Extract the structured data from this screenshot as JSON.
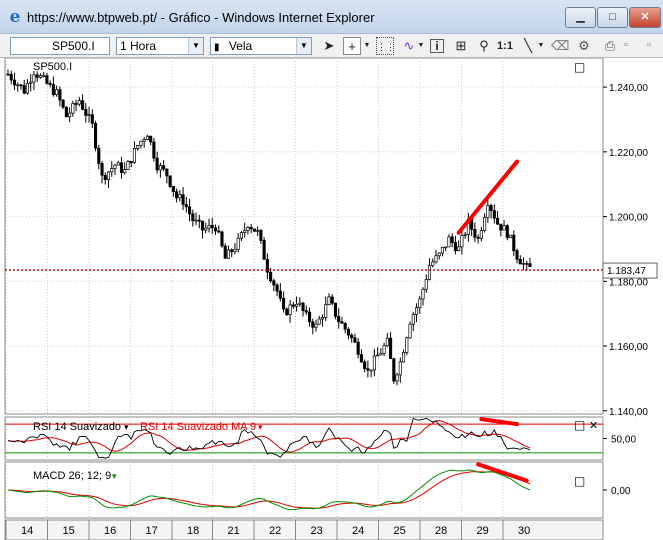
{
  "window": {
    "title": "https://www.btpweb.pt/ - Gráfico - Windows Internet Explorer",
    "min_label": "▁",
    "max_label": "□",
    "close_label": "✕"
  },
  "toolbar": {
    "symbol": "SP500.I",
    "interval": "1 Hora",
    "chart_type": "Vela",
    "one_to_one": "1:1"
  },
  "chart_data": [
    {
      "type": "candlestick",
      "title": "SP500.I",
      "x_labels": [
        "14",
        "15",
        "16",
        "17",
        "18",
        "21",
        "22",
        "23",
        "24",
        "25",
        "28",
        "29",
        "30"
      ],
      "y_ticks": [
        "1.240,00",
        "1.220,00",
        "1.200,00",
        "1.180,00",
        "1.160,00",
        "1.140,00"
      ],
      "ylim": [
        1139,
        1249
      ],
      "last_price": 1183.47,
      "last_price_label": "1.183,47",
      "close_path": [
        [
          0,
          1244
        ],
        [
          5,
          1239
        ],
        [
          8,
          1245
        ],
        [
          12,
          1241
        ],
        [
          15,
          1238
        ],
        [
          18,
          1231
        ],
        [
          22,
          1236
        ],
        [
          26,
          1228
        ],
        [
          29,
          1212
        ],
        [
          33,
          1216
        ],
        [
          36,
          1214
        ],
        [
          40,
          1222
        ],
        [
          43,
          1226
        ],
        [
          46,
          1216
        ],
        [
          49,
          1213
        ],
        [
          52,
          1206
        ],
        [
          54,
          1205
        ],
        [
          57,
          1199
        ],
        [
          60,
          1196
        ],
        [
          64,
          1197
        ],
        [
          67,
          1187
        ],
        [
          71,
          1192
        ],
        [
          74,
          1198
        ],
        [
          77,
          1195
        ],
        [
          80,
          1184
        ],
        [
          83,
          1177
        ],
        [
          85,
          1170
        ],
        [
          89,
          1174
        ],
        [
          92,
          1169
        ],
        [
          95,
          1166
        ],
        [
          99,
          1174
        ],
        [
          102,
          1168
        ],
        [
          105,
          1164
        ],
        [
          108,
          1159
        ],
        [
          111,
          1152
        ],
        [
          114,
          1157
        ],
        [
          117,
          1161
        ],
        [
          119,
          1150
        ],
        [
          121,
          1155
        ],
        [
          124,
          1168
        ],
        [
          127,
          1174
        ],
        [
          130,
          1185
        ],
        [
          133,
          1188
        ],
        [
          136,
          1193
        ],
        [
          139,
          1190
        ],
        [
          142,
          1198
        ],
        [
          145,
          1193
        ],
        [
          148,
          1205
        ],
        [
          151,
          1198
        ],
        [
          154,
          1195
        ],
        [
          157,
          1188
        ],
        [
          160,
          1184
        ]
      ],
      "annotation_line": {
        "from": [
          139,
          1195
        ],
        "to": [
          157,
          1217
        ]
      }
    },
    {
      "type": "line",
      "title": "RSI 14 Suavizado",
      "series": [
        {
          "name": "RSI 14 Suavizado",
          "color": "#000000"
        },
        {
          "name": "RSI 14 Suavizado MA 9",
          "color": "#e00000"
        }
      ],
      "y_ticks": [
        "50,00"
      ],
      "ylim": [
        20,
        80
      ],
      "upper_level": 70,
      "lower_level": 30,
      "annotation_line": {
        "from": [
          146,
          77
        ],
        "to": [
          157,
          70
        ]
      }
    },
    {
      "type": "line",
      "title": "MACD 26; 12; 9",
      "series": [
        {
          "name": "MACD",
          "color": "#009000"
        },
        {
          "name": "Signal",
          "color": "#e00000"
        }
      ],
      "y_ticks": [
        "0,00"
      ],
      "ylim": [
        -6,
        6
      ],
      "annotation_line": {
        "from": [
          145,
          5.5
        ],
        "to": [
          160,
          2
        ]
      }
    }
  ],
  "panes": {
    "rsi_menu_marker": "▾",
    "macd_menu_marker": "▾",
    "window_box": "□",
    "close_x": "✕"
  },
  "colors": {
    "title_text": "#000000",
    "annotation_red": "#ff0000",
    "macd_green": "#009000",
    "rsi_red": "#e00000"
  }
}
